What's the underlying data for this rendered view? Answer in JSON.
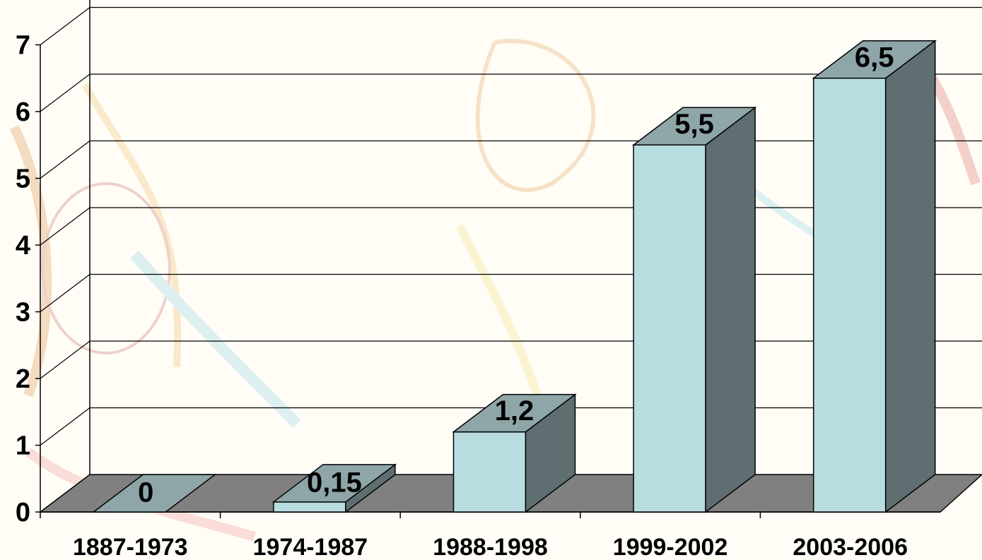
{
  "chart_data": {
    "type": "bar",
    "style": "3d-column",
    "categories": [
      "1887-1973",
      "1974-1987",
      "1988-1998",
      "1999-2002",
      "2003-2006"
    ],
    "values": [
      0,
      0.15,
      1.2,
      5.5,
      6.5
    ],
    "value_labels": [
      "0",
      "0,15",
      "1,2",
      "5,5",
      "6,5"
    ],
    "y_ticks": [
      "0",
      "1",
      "2",
      "3",
      "4",
      "5",
      "6",
      "7"
    ],
    "ylim": [
      0,
      7
    ],
    "grid": true,
    "legend": "none",
    "colors": {
      "bar_front": "#b8dde0",
      "bar_top": "#8fa6a9",
      "bar_side": "#5f6f71",
      "floor": "#808080",
      "grid": "#000000",
      "background": "#fffdf6"
    }
  }
}
